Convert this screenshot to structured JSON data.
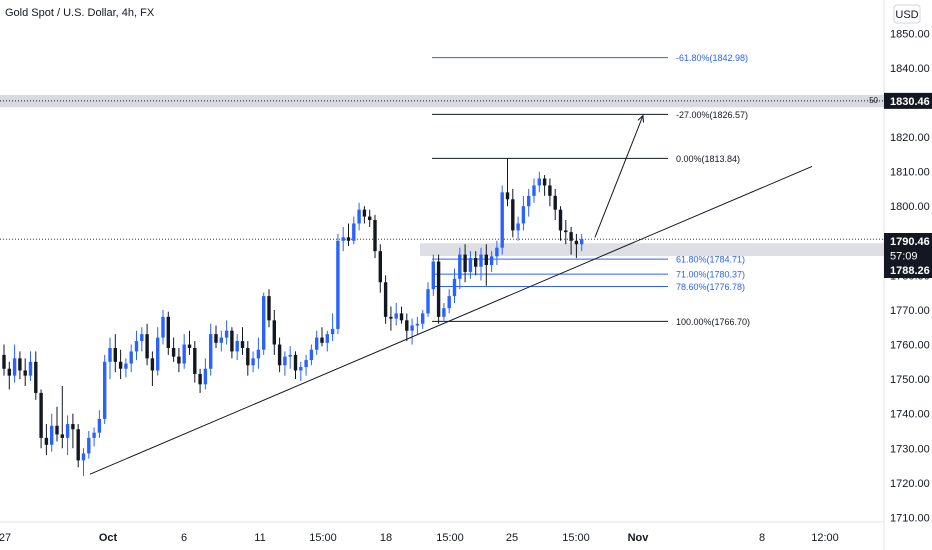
{
  "header": {
    "title": "Gold Spot / U.S. Dollar, 4h, FX"
  },
  "currency_button": {
    "label": "USD"
  },
  "colors": {
    "bull": "#2962ff",
    "bear": "#131722",
    "fib_blue": "#2962ff",
    "line_black": "#131722",
    "zone_gray": "#d1d4dc",
    "tag_dark": "#131722"
  },
  "chart_data": {
    "type": "candlestick",
    "symbol": "Gold Spot / U.S. Dollar",
    "interval": "4h",
    "exchange": "FX",
    "currency": "USD",
    "ylim": [
      1710,
      1855
    ],
    "y_ticks": [
      1710,
      1720,
      1730,
      1740,
      1750,
      1760,
      1770,
      1780,
      1790,
      1800,
      1810,
      1820,
      1830,
      1840,
      1850
    ],
    "y_tick_labels": [
      "1710.00",
      "1720.00",
      "1730.00",
      "1740.00",
      "1750.00",
      "1760.00",
      "1770.00",
      "1780.00",
      "1790.00",
      "1800.00",
      "1810.00",
      "1820.00",
      "1830.00",
      "1840.00",
      "1850.00"
    ],
    "x_tick_labels": [
      "27",
      "Oct",
      "6",
      "11",
      "15:00",
      "18",
      "15:00",
      "25",
      "15:00",
      "Nov",
      "8",
      "12:00"
    ],
    "bold_x_labels": [
      "Oct",
      "Nov"
    ],
    "price_tags": [
      {
        "label": "1830.46",
        "value": 1830.46,
        "style": "dark"
      },
      {
        "label": "1790.46",
        "value": 1790.46,
        "style": "dark"
      },
      {
        "label": "57:09",
        "value": 1788.9,
        "style": "dark-small"
      },
      {
        "label": "1788.26",
        "value": 1788.26,
        "style": "dark"
      }
    ],
    "resistance_zone": {
      "label": "50",
      "value_top": 1832.2,
      "value_bottom": 1828.6
    },
    "current_price": 1790.46,
    "support_zone": {
      "value_top": 1789.3,
      "value_bottom": 1785.6
    },
    "fib_levels": [
      {
        "label": "-61.80%(1842.98)",
        "value": 1842.98,
        "color": "blue"
      },
      {
        "label": "-27.00%(1826.57)",
        "value": 1826.57,
        "color": "black"
      },
      {
        "label": "0.00%(1813.84)",
        "value": 1813.84,
        "color": "black"
      },
      {
        "label": "61.80%(1784.71)",
        "value": 1784.71,
        "color": "blue"
      },
      {
        "label": "71.00%(1780.37)",
        "value": 1780.37,
        "color": "blue"
      },
      {
        "label": "78.60%(1776.78)",
        "value": 1776.78,
        "color": "blue"
      },
      {
        "label": "100.00%(1766.70)",
        "value": 1766.7,
        "color": "black"
      }
    ],
    "trendline": {
      "from": [
        0.148,
        1722.5
      ],
      "to": [
        1.332,
        1811.5
      ]
    },
    "projection_arrow": {
      "from": [
        0.975,
        1791.0
      ],
      "to": [
        1.055,
        1826.2
      ]
    },
    "candles": [
      [
        1757.0,
        1760.0,
        1751.0,
        1753.0
      ],
      [
        1753.0,
        1755.0,
        1747.0,
        1751.0
      ],
      [
        1751.0,
        1760.0,
        1749.0,
        1756.0
      ],
      [
        1756.0,
        1758.0,
        1750.0,
        1752.5
      ],
      [
        1752.5,
        1756.0,
        1748.0,
        1751.0
      ],
      [
        1751.0,
        1758.0,
        1749.5,
        1755.0
      ],
      [
        1755.0,
        1758.0,
        1744.0,
        1746.0
      ],
      [
        1746.0,
        1747.0,
        1730.0,
        1733.0
      ],
      [
        1733.0,
        1737.0,
        1728.0,
        1731.0
      ],
      [
        1731.0,
        1740.0,
        1729.0,
        1736.5
      ],
      [
        1736.5,
        1742.0,
        1732.0,
        1734.0
      ],
      [
        1734.0,
        1748.0,
        1730.0,
        1733.0
      ],
      [
        1733.0,
        1739.5,
        1728.0,
        1737.0
      ],
      [
        1737.0,
        1740.0,
        1730.0,
        1735.5
      ],
      [
        1735.5,
        1737.0,
        1724.5,
        1726.5
      ],
      [
        1726.5,
        1730.0,
        1722.0,
        1728.5
      ],
      [
        1728.5,
        1735.0,
        1727.0,
        1733.0
      ],
      [
        1733.0,
        1736.0,
        1730.5,
        1734.5
      ],
      [
        1734.5,
        1741.0,
        1733.0,
        1738.5
      ],
      [
        1738.5,
        1757.0,
        1737.0,
        1755.0
      ],
      [
        1755.0,
        1762.0,
        1750.0,
        1759.0
      ],
      [
        1759.0,
        1763.0,
        1752.0,
        1755.0
      ],
      [
        1755.0,
        1758.5,
        1750.0,
        1753.0
      ],
      [
        1753.0,
        1756.0,
        1750.5,
        1754.5
      ],
      [
        1754.5,
        1760.0,
        1752.0,
        1758.0
      ],
      [
        1758.0,
        1764.0,
        1755.5,
        1761.0
      ],
      [
        1761.0,
        1765.0,
        1758.0,
        1763.0
      ],
      [
        1763.0,
        1766.0,
        1754.0,
        1756.0
      ],
      [
        1756.0,
        1758.0,
        1748.0,
        1752.5
      ],
      [
        1752.5,
        1765.0,
        1751.0,
        1762.0
      ],
      [
        1762.0,
        1770.0,
        1760.0,
        1768.0
      ],
      [
        1768.0,
        1769.5,
        1757.0,
        1759.0
      ],
      [
        1759.0,
        1762.0,
        1755.0,
        1756.5
      ],
      [
        1756.5,
        1759.0,
        1752.0,
        1754.5
      ],
      [
        1754.5,
        1763.0,
        1753.0,
        1760.0
      ],
      [
        1760.0,
        1764.0,
        1757.0,
        1759.0
      ],
      [
        1759.0,
        1761.0,
        1749.0,
        1751.5
      ],
      [
        1751.5,
        1753.0,
        1746.0,
        1748.5
      ],
      [
        1748.5,
        1756.0,
        1747.0,
        1753.0
      ],
      [
        1753.0,
        1766.0,
        1751.0,
        1763.0
      ],
      [
        1763.0,
        1765.5,
        1759.0,
        1760.5
      ],
      [
        1760.5,
        1764.0,
        1758.0,
        1762.0
      ],
      [
        1762.0,
        1767.0,
        1760.0,
        1764.0
      ],
      [
        1764.0,
        1765.0,
        1756.0,
        1758.0
      ],
      [
        1758.0,
        1763.0,
        1755.5,
        1761.0
      ],
      [
        1761.0,
        1765.0,
        1757.0,
        1759.0
      ],
      [
        1759.0,
        1761.0,
        1751.0,
        1754.0
      ],
      [
        1754.0,
        1758.0,
        1752.0,
        1756.0
      ],
      [
        1756.0,
        1762.0,
        1753.0,
        1758.5
      ],
      [
        1758.5,
        1775.0,
        1757.0,
        1774.0
      ],
      [
        1774.0,
        1776.0,
        1765.0,
        1767.0
      ],
      [
        1767.0,
        1770.0,
        1757.0,
        1760.0
      ],
      [
        1760.0,
        1762.0,
        1752.0,
        1754.0
      ],
      [
        1754.0,
        1758.0,
        1751.0,
        1756.5
      ],
      [
        1756.5,
        1759.5,
        1753.0,
        1757.0
      ],
      [
        1757.0,
        1758.0,
        1750.0,
        1752.5
      ],
      [
        1752.5,
        1755.0,
        1749.5,
        1753.5
      ],
      [
        1753.5,
        1757.0,
        1751.0,
        1755.5
      ],
      [
        1755.5,
        1760.0,
        1754.0,
        1758.5
      ],
      [
        1758.5,
        1764.0,
        1757.0,
        1762.0
      ],
      [
        1762.0,
        1765.0,
        1759.5,
        1760.5
      ],
      [
        1760.5,
        1764.0,
        1758.0,
        1763.0
      ],
      [
        1763.0,
        1769.0,
        1761.0,
        1764.5
      ],
      [
        1764.5,
        1792.0,
        1763.0,
        1790.0
      ],
      [
        1790.0,
        1794.0,
        1787.0,
        1791.0
      ],
      [
        1791.0,
        1795.0,
        1788.5,
        1790.0
      ],
      [
        1790.0,
        1797.0,
        1789.0,
        1795.0
      ],
      [
        1795.0,
        1801.0,
        1793.0,
        1799.0
      ],
      [
        1799.0,
        1800.0,
        1795.0,
        1797.0
      ],
      [
        1797.0,
        1799.0,
        1794.0,
        1796.0
      ],
      [
        1796.0,
        1797.5,
        1785.0,
        1787.0
      ],
      [
        1787.0,
        1789.0,
        1775.0,
        1778.0
      ],
      [
        1778.0,
        1780.0,
        1766.0,
        1768.0
      ],
      [
        1768.0,
        1771.0,
        1764.0,
        1767.5
      ],
      [
        1767.5,
        1772.0,
        1765.5,
        1769.0
      ],
      [
        1769.0,
        1771.0,
        1766.0,
        1767.0
      ],
      [
        1767.0,
        1769.0,
        1761.0,
        1764.0
      ],
      [
        1764.0,
        1767.5,
        1760.0,
        1765.5
      ],
      [
        1765.5,
        1768.0,
        1763.0,
        1766.0
      ],
      [
        1766.0,
        1770.0,
        1764.5,
        1769.0
      ],
      [
        1769.0,
        1778.0,
        1768.0,
        1776.0
      ],
      [
        1776.0,
        1786.0,
        1774.0,
        1784.0
      ],
      [
        1784.0,
        1786.0,
        1766.0,
        1768.0
      ],
      [
        1768.0,
        1772.0,
        1766.5,
        1770.5
      ],
      [
        1770.5,
        1776.0,
        1769.0,
        1774.0
      ],
      [
        1774.0,
        1782.0,
        1772.0,
        1779.0
      ],
      [
        1779.0,
        1788.0,
        1776.0,
        1786.0
      ],
      [
        1786.0,
        1789.0,
        1778.0,
        1781.0
      ],
      [
        1781.0,
        1787.0,
        1779.0,
        1785.0
      ],
      [
        1785.0,
        1787.0,
        1780.0,
        1782.5
      ],
      [
        1782.5,
        1788.0,
        1778.5,
        1786.0
      ],
      [
        1786.0,
        1789.0,
        1777.0,
        1783.0
      ],
      [
        1783.0,
        1787.0,
        1781.0,
        1785.5
      ],
      [
        1785.5,
        1790.0,
        1783.0,
        1788.0
      ],
      [
        1788.0,
        1806.0,
        1786.0,
        1804.0
      ],
      [
        1804.0,
        1813.84,
        1800.0,
        1802.0
      ],
      [
        1802.0,
        1805.0,
        1791.0,
        1793.0
      ],
      [
        1793.0,
        1797.0,
        1790.0,
        1795.0
      ],
      [
        1795.0,
        1803.0,
        1793.0,
        1800.0
      ],
      [
        1800.0,
        1805.0,
        1797.0,
        1803.0
      ],
      [
        1803.0,
        1808.0,
        1801.0,
        1806.0
      ],
      [
        1806.0,
        1810.0,
        1804.0,
        1808.0
      ],
      [
        1808.0,
        1809.0,
        1803.0,
        1806.0
      ],
      [
        1806.0,
        1808.0,
        1800.0,
        1803.0
      ],
      [
        1803.0,
        1805.0,
        1796.0,
        1799.0
      ],
      [
        1799.0,
        1800.0,
        1790.0,
        1793.0
      ],
      [
        1793.0,
        1796.0,
        1789.0,
        1792.5
      ],
      [
        1792.5,
        1794.0,
        1786.0,
        1790.0
      ],
      [
        1790.0,
        1792.0,
        1785.0,
        1789.0
      ],
      [
        1789.0,
        1792.0,
        1787.0,
        1790.46
      ]
    ]
  }
}
